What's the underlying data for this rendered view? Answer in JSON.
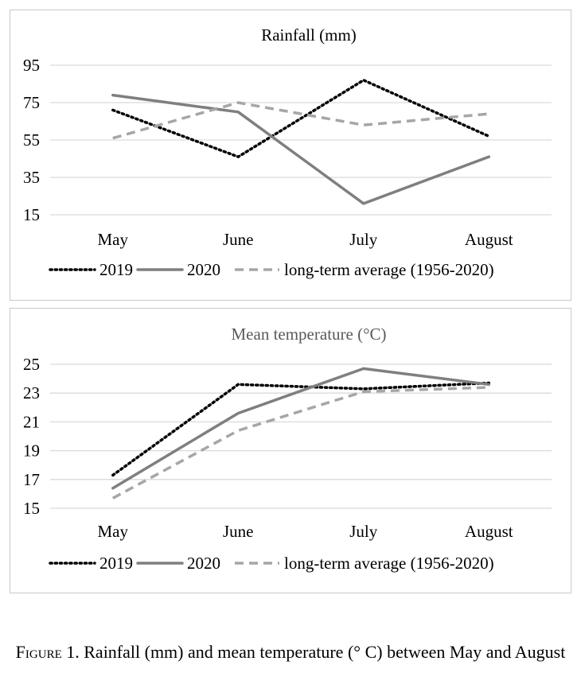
{
  "chart_data": [
    {
      "type": "line",
      "title": "Rainfall (mm)",
      "title_color": "#000000",
      "categories": [
        "May",
        "June",
        "July",
        "August"
      ],
      "ylim": [
        15,
        95
      ],
      "yticks": [
        15,
        35,
        55,
        75,
        95
      ],
      "grid": true,
      "legend_placement": "bottom",
      "series": [
        {
          "name": "2019",
          "values": [
            71,
            46,
            87,
            57
          ],
          "color": "#000000",
          "style": "dotted"
        },
        {
          "name": "2020",
          "values": [
            79,
            70,
            21,
            46
          ],
          "color": "#7f7f7f",
          "style": "solid"
        },
        {
          "name": "long-term average (1956-2020)",
          "values": [
            56,
            75,
            63,
            69
          ],
          "color": "#a6a6a6",
          "style": "dashed"
        }
      ]
    },
    {
      "type": "line",
      "title": "Mean temperature (°C)",
      "title_color": "#595959",
      "categories": [
        "May",
        "June",
        "July",
        "August"
      ],
      "ylim": [
        15,
        25
      ],
      "yticks": [
        15,
        17,
        19,
        21,
        23,
        25
      ],
      "grid": true,
      "legend_placement": "bottom",
      "series": [
        {
          "name": "2019",
          "values": [
            17.3,
            23.6,
            23.3,
            23.7
          ],
          "color": "#000000",
          "style": "dotted"
        },
        {
          "name": "2020",
          "values": [
            16.4,
            21.6,
            24.7,
            23.6
          ],
          "color": "#7f7f7f",
          "style": "solid"
        },
        {
          "name": "long-term average (1956-2020)",
          "values": [
            15.7,
            20.4,
            23.1,
            23.4
          ],
          "color": "#a6a6a6",
          "style": "dashed"
        }
      ]
    }
  ],
  "caption": {
    "label": "Figure 1.",
    "text": " Rainfall (mm) and mean temperature (° C) between May and August"
  }
}
